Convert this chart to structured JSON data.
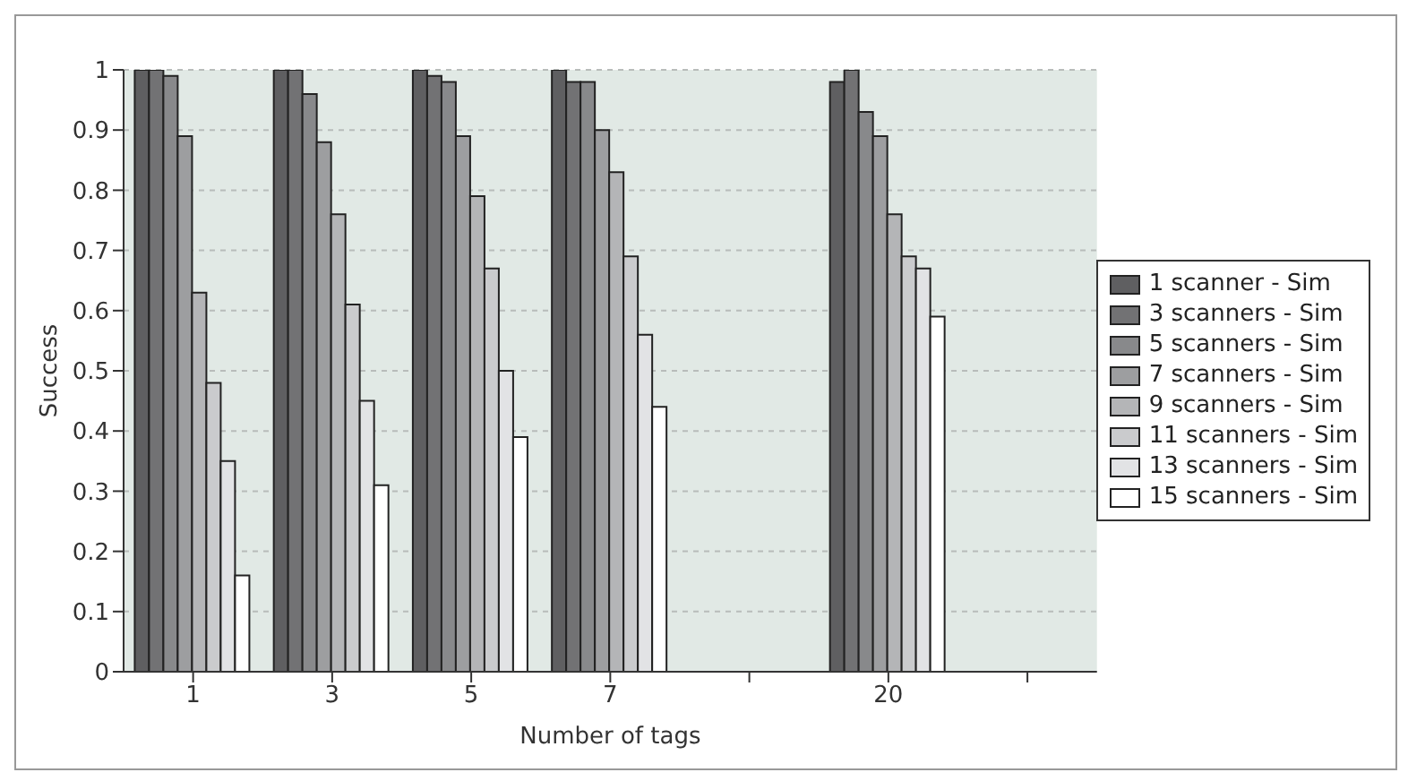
{
  "chart_data": {
    "type": "bar",
    "xlabel": "Number of tags",
    "ylabel": "Success",
    "categories": [
      "1",
      "3",
      "5",
      "7",
      null,
      "20",
      null
    ],
    "series": [
      {
        "name": "1 scanner - Sim",
        "color": "#5f5f61",
        "values": [
          1,
          1,
          1,
          1,
          null,
          0.98,
          null
        ]
      },
      {
        "name": "3 scanners - Sim",
        "color": "#727274",
        "values": [
          1,
          1,
          0.99,
          0.98,
          null,
          1,
          null
        ]
      },
      {
        "name": "5 scanners - Sim",
        "color": "#88898b",
        "values": [
          0.99,
          0.96,
          0.98,
          0.98,
          null,
          0.93,
          null
        ]
      },
      {
        "name": "7 scanners - Sim",
        "color": "#9d9ea0",
        "values": [
          0.89,
          0.88,
          0.89,
          0.9,
          null,
          0.89,
          null
        ]
      },
      {
        "name": "9 scanners - Sim",
        "color": "#b4b5b7",
        "values": [
          0.63,
          0.76,
          0.79,
          0.83,
          null,
          0.76,
          null
        ]
      },
      {
        "name": "11 scanners - Sim",
        "color": "#cacbcd",
        "values": [
          0.48,
          0.61,
          0.67,
          0.69,
          null,
          0.69,
          null
        ]
      },
      {
        "name": "13 scanners - Sim",
        "color": "#e2e3e5",
        "values": [
          0.35,
          0.45,
          0.5,
          0.56,
          null,
          0.67,
          null
        ]
      },
      {
        "name": "15 scanners - Sim",
        "color": "#ffffff",
        "values": [
          0.16,
          0.31,
          0.39,
          0.44,
          null,
          0.59,
          null
        ]
      }
    ],
    "ylim": [
      0,
      1
    ],
    "yticks": [
      0,
      0.1,
      0.2,
      0.3,
      0.4,
      0.5,
      0.6,
      0.7,
      0.8,
      0.9,
      1
    ],
    "grid": "y",
    "legend": "right"
  }
}
